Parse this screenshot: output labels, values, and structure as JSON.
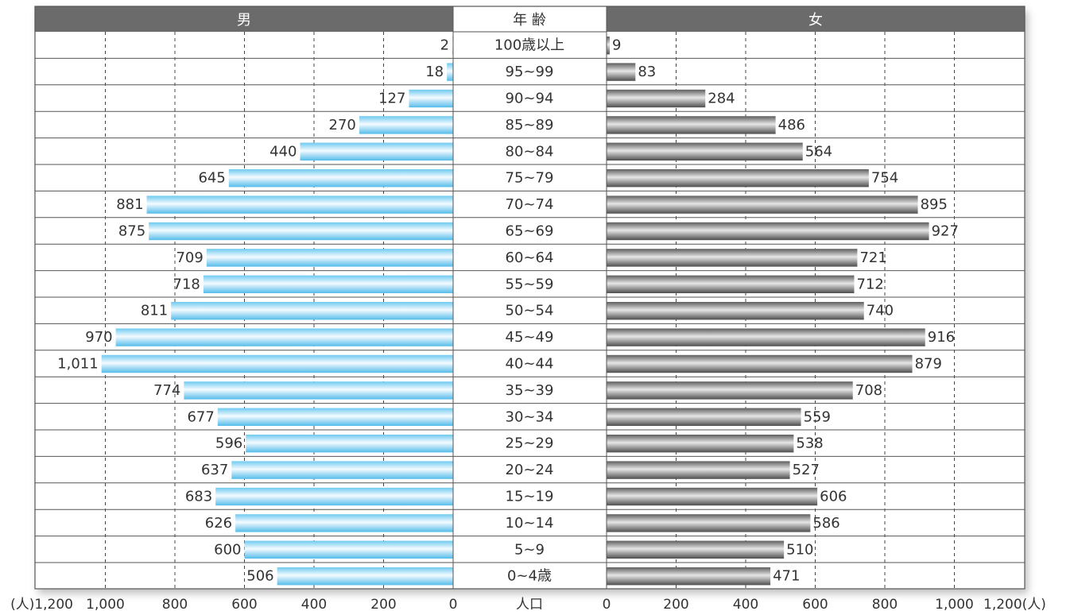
{
  "chart_data": {
    "type": "bar",
    "headers": {
      "male": "男",
      "age": "年 齢",
      "female": "女"
    },
    "age_groups": [
      "100歳以上",
      "95~99",
      "90~94",
      "85~89",
      "80~84",
      "75~79",
      "70~74",
      "65~69",
      "60~64",
      "55~59",
      "50~54",
      "45~49",
      "40~44",
      "35~39",
      "30~34",
      "25~29",
      "20~24",
      "15~19",
      "10~14",
      "5~9",
      "0~4歳"
    ],
    "series": [
      {
        "name": "男",
        "values": [
          2,
          18,
          127,
          270,
          440,
          645,
          881,
          875,
          709,
          718,
          811,
          970,
          1011,
          774,
          677,
          596,
          637,
          683,
          626,
          600,
          506
        ]
      },
      {
        "name": "女",
        "values": [
          9,
          83,
          284,
          486,
          564,
          754,
          895,
          927,
          721,
          712,
          740,
          916,
          879,
          708,
          559,
          538,
          527,
          606,
          586,
          510,
          471
        ]
      }
    ],
    "value_labels": {
      "male": [
        "2",
        "18",
        "127",
        "270",
        "440",
        "645",
        "881",
        "875",
        "709",
        "718",
        "811",
        "970",
        "1,011",
        "774",
        "677",
        "596",
        "637",
        "683",
        "626",
        "600",
        "506"
      ],
      "female": [
        "9",
        "83",
        "284",
        "486",
        "564",
        "754",
        "895",
        "927",
        "721",
        "712",
        "740",
        "916",
        "879",
        "708",
        "559",
        "538",
        "527",
        "606",
        "586",
        "510",
        "471"
      ]
    },
    "xlim": [
      0,
      1200
    ],
    "male_ticks": [
      "(人)1,200",
      "1,000",
      "800",
      "600",
      "400",
      "200",
      "0"
    ],
    "female_ticks": [
      "0",
      "200",
      "400",
      "600",
      "800",
      "1,000",
      "1,200(人)"
    ],
    "center_axis_label": "人口",
    "grid": true,
    "colors": {
      "male_bar": "#9ad9f3",
      "female_bar": "#8c8c8c",
      "header": "#6b6b6b",
      "border": "#555555"
    }
  }
}
